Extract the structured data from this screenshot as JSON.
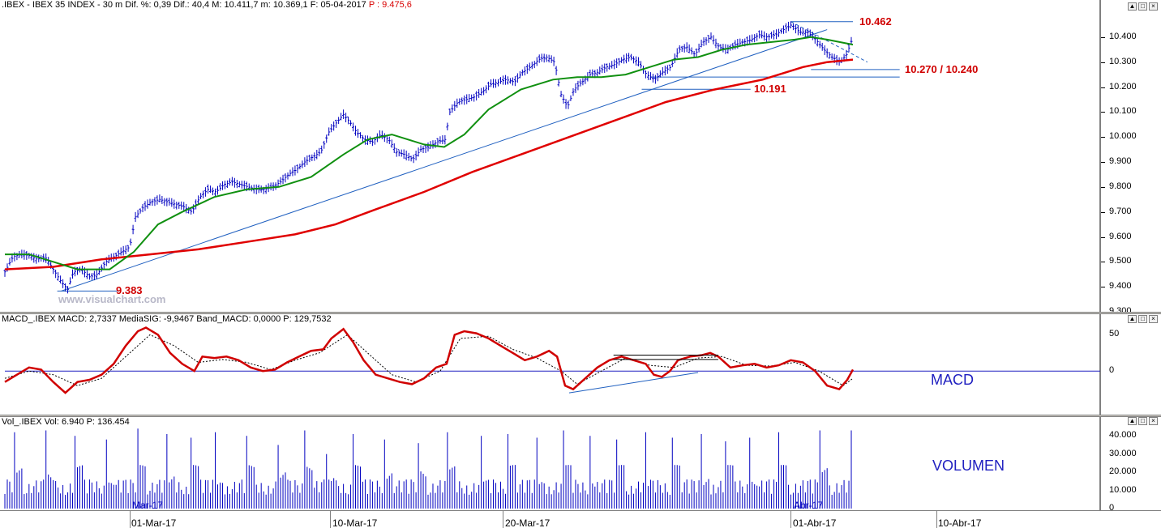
{
  "window": {
    "buttons": [
      "▲",
      "□",
      "×"
    ]
  },
  "price_panel": {
    "header": ".IBEX - IBEX 35 INDEX -  30 m  Dif. %: 0,39  Dif.: 40,4  M: 10.411,7  m: 10.369,1  F: 05-04-2017",
    "header_p": "P : 9.475,6",
    "watermark": "www.visualchart.com"
  },
  "macd_panel": {
    "header": "MACD_.IBEX MACD: 2,7337  MediaSIG: -9,9467  Band_MACD: 0,0000  P: 129,7532",
    "label": "MACD"
  },
  "vol_panel": {
    "header": "Vol_.IBEX Vol: 6.940  P: 136.454",
    "label": "VOLUMEN"
  },
  "date_axis": {
    "labels": [
      "01-Mar-17",
      "10-Mar-17",
      "20-Mar-17",
      "01-Abr-17",
      "10-Abr-17"
    ],
    "inner_labels": [
      "Mar-17",
      "Abr-17"
    ]
  },
  "colors": {
    "price_bars": "#0000c0",
    "ma_slow": "#e00000",
    "ma_fast": "#109010",
    "trendline": "#2060c0",
    "annotation": "#d00000",
    "macd_line": "#d00000",
    "signal_line": "#000000",
    "volume": "#0000c0"
  },
  "chart_data": [
    {
      "type": "line",
      "ylim": [
        9300,
        10500
      ],
      "yticks": [
        "10.400",
        "10.300",
        "10.200",
        "10.100",
        "10.000",
        "9.900",
        "9.800",
        "9.700",
        "9.600",
        "9.500",
        "9.400",
        "9.300"
      ],
      "yvalues": [
        10400,
        10300,
        10200,
        10100,
        10000,
        9900,
        9800,
        9700,
        9600,
        9500,
        9400,
        9300
      ],
      "x_range": [
        0,
        1052
      ],
      "close": [
        [
          0,
          9460
        ],
        [
          10,
          9520
        ],
        [
          20,
          9530
        ],
        [
          30,
          9525
        ],
        [
          40,
          9510
        ],
        [
          50,
          9520
        ],
        [
          60,
          9470
        ],
        [
          70,
          9420
        ],
        [
          78,
          9390
        ],
        [
          85,
          9460
        ],
        [
          95,
          9470
        ],
        [
          105,
          9440
        ],
        [
          115,
          9450
        ],
        [
          125,
          9500
        ],
        [
          135,
          9520
        ],
        [
          145,
          9540
        ],
        [
          155,
          9560
        ],
        [
          162,
          9680
        ],
        [
          172,
          9720
        ],
        [
          182,
          9740
        ],
        [
          192,
          9750
        ],
        [
          202,
          9740
        ],
        [
          212,
          9730
        ],
        [
          222,
          9720
        ],
        [
          232,
          9700
        ],
        [
          242,
          9760
        ],
        [
          252,
          9790
        ],
        [
          262,
          9780
        ],
        [
          272,
          9810
        ],
        [
          282,
          9820
        ],
        [
          292,
          9810
        ],
        [
          302,
          9800
        ],
        [
          312,
          9790
        ],
        [
          322,
          9790
        ],
        [
          332,
          9800
        ],
        [
          342,
          9820
        ],
        [
          352,
          9850
        ],
        [
          362,
          9870
        ],
        [
          372,
          9900
        ],
        [
          382,
          9920
        ],
        [
          392,
          9940
        ],
        [
          402,
          10020
        ],
        [
          412,
          10060
        ],
        [
          420,
          10090
        ],
        [
          428,
          10060
        ],
        [
          436,
          10020
        ],
        [
          446,
          9990
        ],
        [
          456,
          9980
        ],
        [
          466,
          10010
        ],
        [
          476,
          9990
        ],
        [
          486,
          9940
        ],
        [
          496,
          9930
        ],
        [
          506,
          9910
        ],
        [
          516,
          9950
        ],
        [
          526,
          9960
        ],
        [
          536,
          9980
        ],
        [
          546,
          9990
        ],
        [
          552,
          10100
        ],
        [
          562,
          10140
        ],
        [
          572,
          10150
        ],
        [
          582,
          10160
        ],
        [
          592,
          10180
        ],
        [
          602,
          10210
        ],
        [
          612,
          10220
        ],
        [
          622,
          10230
        ],
        [
          632,
          10220
        ],
        [
          642,
          10260
        ],
        [
          652,
          10280
        ],
        [
          662,
          10310
        ],
        [
          672,
          10320
        ],
        [
          682,
          10300
        ],
        [
          690,
          10170
        ],
        [
          698,
          10120
        ],
        [
          706,
          10190
        ],
        [
          716,
          10220
        ],
        [
          726,
          10250
        ],
        [
          736,
          10260
        ],
        [
          746,
          10280
        ],
        [
          756,
          10290
        ],
        [
          766,
          10310
        ],
        [
          776,
          10320
        ],
        [
          786,
          10300
        ],
        [
          796,
          10250
        ],
        [
          806,
          10230
        ],
        [
          816,
          10260
        ],
        [
          826,
          10280
        ],
        [
          836,
          10350
        ],
        [
          846,
          10360
        ],
        [
          856,
          10330
        ],
        [
          866,
          10380
        ],
        [
          876,
          10400
        ],
        [
          886,
          10360
        ],
        [
          896,
          10350
        ],
        [
          906,
          10370
        ],
        [
          916,
          10380
        ],
        [
          926,
          10390
        ],
        [
          936,
          10410
        ],
        [
          946,
          10400
        ],
        [
          956,
          10410
        ],
        [
          966,
          10430
        ],
        [
          976,
          10450
        ],
        [
          986,
          10420
        ],
        [
          996,
          10420
        ],
        [
          1006,
          10390
        ],
        [
          1016,
          10350
        ],
        [
          1026,
          10320
        ],
        [
          1036,
          10300
        ],
        [
          1044,
          10330
        ],
        [
          1052,
          10400
        ]
      ],
      "sma_fast": [
        [
          0,
          9530
        ],
        [
          30,
          9530
        ],
        [
          60,
          9500
        ],
        [
          90,
          9470
        ],
        [
          130,
          9470
        ],
        [
          160,
          9540
        ],
        [
          190,
          9650
        ],
        [
          220,
          9700
        ],
        [
          260,
          9760
        ],
        [
          300,
          9790
        ],
        [
          340,
          9800
        ],
        [
          380,
          9840
        ],
        [
          420,
          9930
        ],
        [
          450,
          9990
        ],
        [
          480,
          10010
        ],
        [
          520,
          9970
        ],
        [
          545,
          9960
        ],
        [
          570,
          10010
        ],
        [
          600,
          10110
        ],
        [
          640,
          10190
        ],
        [
          680,
          10230
        ],
        [
          710,
          10240
        ],
        [
          740,
          10240
        ],
        [
          770,
          10250
        ],
        [
          800,
          10280
        ],
        [
          830,
          10310
        ],
        [
          860,
          10320
        ],
        [
          890,
          10350
        ],
        [
          920,
          10370
        ],
        [
          950,
          10380
        ],
        [
          980,
          10390
        ],
        [
          1000,
          10400
        ],
        [
          1020,
          10390
        ],
        [
          1052,
          10370
        ]
      ],
      "sma_slow": [
        [
          0,
          9470
        ],
        [
          60,
          9480
        ],
        [
          120,
          9510
        ],
        [
          180,
          9530
        ],
        [
          240,
          9550
        ],
        [
          300,
          9580
        ],
        [
          360,
          9610
        ],
        [
          410,
          9650
        ],
        [
          460,
          9710
        ],
        [
          520,
          9780
        ],
        [
          580,
          9860
        ],
        [
          640,
          9930
        ],
        [
          700,
          10000
        ],
        [
          760,
          10070
        ],
        [
          820,
          10140
        ],
        [
          880,
          10190
        ],
        [
          940,
          10230
        ],
        [
          990,
          10280
        ],
        [
          1020,
          10300
        ],
        [
          1052,
          10310
        ]
      ],
      "annotations": [
        {
          "text": "10.462",
          "value": 10462
        },
        {
          "text": "10.270 / 10.240",
          "value": 10270
        },
        {
          "text": "10.191",
          "value": 10191
        },
        {
          "text": "9.383",
          "value": 9383
        }
      ]
    },
    {
      "type": "line",
      "ylim": [
        -60,
        65
      ],
      "yticks": [
        "50",
        "0"
      ],
      "yvalues": [
        50,
        0
      ],
      "macd": [
        [
          0,
          -15
        ],
        [
          15,
          -5
        ],
        [
          30,
          5
        ],
        [
          45,
          2
        ],
        [
          60,
          -15
        ],
        [
          75,
          -30
        ],
        [
          90,
          -15
        ],
        [
          105,
          -12
        ],
        [
          120,
          -5
        ],
        [
          135,
          10
        ],
        [
          150,
          35
        ],
        [
          165,
          55
        ],
        [
          175,
          60
        ],
        [
          190,
          50
        ],
        [
          205,
          25
        ],
        [
          220,
          10
        ],
        [
          235,
          0
        ],
        [
          245,
          20
        ],
        [
          260,
          18
        ],
        [
          275,
          20
        ],
        [
          290,
          15
        ],
        [
          305,
          5
        ],
        [
          320,
          0
        ],
        [
          335,
          2
        ],
        [
          350,
          12
        ],
        [
          365,
          20
        ],
        [
          380,
          28
        ],
        [
          395,
          30
        ],
        [
          405,
          45
        ],
        [
          420,
          58
        ],
        [
          432,
          40
        ],
        [
          445,
          15
        ],
        [
          460,
          -5
        ],
        [
          475,
          -10
        ],
        [
          490,
          -15
        ],
        [
          505,
          -18
        ],
        [
          520,
          -10
        ],
        [
          535,
          5
        ],
        [
          548,
          10
        ],
        [
          558,
          50
        ],
        [
          570,
          55
        ],
        [
          585,
          52
        ],
        [
          600,
          45
        ],
        [
          615,
          35
        ],
        [
          630,
          25
        ],
        [
          645,
          15
        ],
        [
          660,
          20
        ],
        [
          675,
          28
        ],
        [
          685,
          20
        ],
        [
          695,
          -20
        ],
        [
          705,
          -25
        ],
        [
          720,
          -10
        ],
        [
          735,
          5
        ],
        [
          750,
          15
        ],
        [
          765,
          20
        ],
        [
          780,
          15
        ],
        [
          795,
          10
        ],
        [
          805,
          -5
        ],
        [
          815,
          -8
        ],
        [
          825,
          0
        ],
        [
          835,
          15
        ],
        [
          850,
          20
        ],
        [
          865,
          22
        ],
        [
          875,
          25
        ],
        [
          885,
          20
        ],
        [
          900,
          5
        ],
        [
          915,
          8
        ],
        [
          930,
          10
        ],
        [
          945,
          5
        ],
        [
          960,
          8
        ],
        [
          975,
          15
        ],
        [
          990,
          12
        ],
        [
          1005,
          0
        ],
        [
          1020,
          -20
        ],
        [
          1035,
          -25
        ],
        [
          1045,
          -12
        ],
        [
          1052,
          2
        ]
      ],
      "signal": [
        [
          0,
          -10
        ],
        [
          30,
          0
        ],
        [
          60,
          -5
        ],
        [
          90,
          -20
        ],
        [
          120,
          -10
        ],
        [
          150,
          20
        ],
        [
          180,
          50
        ],
        [
          210,
          35
        ],
        [
          240,
          12
        ],
        [
          270,
          16
        ],
        [
          300,
          12
        ],
        [
          330,
          2
        ],
        [
          360,
          15
        ],
        [
          390,
          25
        ],
        [
          425,
          50
        ],
        [
          450,
          25
        ],
        [
          480,
          -5
        ],
        [
          510,
          -15
        ],
        [
          540,
          0
        ],
        [
          565,
          45
        ],
        [
          600,
          48
        ],
        [
          630,
          30
        ],
        [
          660,
          18
        ],
        [
          690,
          0
        ],
        [
          710,
          -18
        ],
        [
          740,
          0
        ],
        [
          770,
          18
        ],
        [
          800,
          8
        ],
        [
          830,
          5
        ],
        [
          860,
          18
        ],
        [
          890,
          20
        ],
        [
          920,
          8
        ],
        [
          950,
          7
        ],
        [
          980,
          12
        ],
        [
          1010,
          0
        ],
        [
          1040,
          -20
        ],
        [
          1052,
          -10
        ]
      ]
    },
    {
      "type": "bar",
      "ylim": [
        0,
        45000
      ],
      "yticks": [
        "40.000",
        "30.000",
        "20.000",
        "10.000",
        "0"
      ],
      "yvalues": [
        40000,
        30000,
        20000,
        10000,
        0
      ],
      "session_open_x": [
        10,
        49,
        87,
        126,
        163,
        201,
        230,
        261,
        299,
        338,
        370,
        398,
        432,
        470,
        511,
        549,
        590,
        624,
        659,
        691,
        726,
        757,
        795,
        828,
        862,
        892,
        924,
        960,
        1010,
        1048
      ],
      "open_volume": [
        42000,
        43000,
        40000,
        38000,
        44000,
        41000,
        39000,
        42000,
        40000,
        35000,
        43000,
        30000,
        41000,
        38000,
        36000,
        42000,
        40000,
        41000,
        39000,
        43000,
        40000,
        38000,
        42000,
        39000,
        41000,
        37000,
        39000,
        42000,
        43000,
        43000
      ]
    }
  ]
}
